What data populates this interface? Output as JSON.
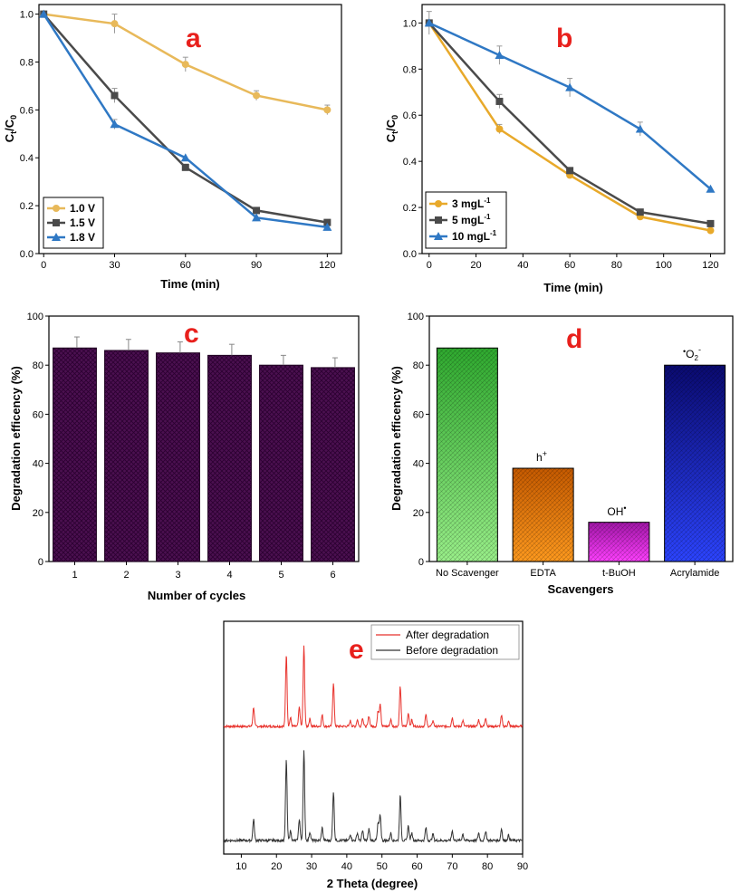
{
  "chart_data": [
    {
      "panel": "a",
      "type": "line",
      "xlabel": "Time (min)",
      "ylabel": "Ct/C0",
      "xlim": [
        -2,
        126
      ],
      "ylim": [
        0,
        1.04
      ],
      "xticks": [
        0,
        30,
        60,
        90,
        120
      ],
      "yticks": [
        0.0,
        0.2,
        0.4,
        0.6,
        0.8,
        1.0
      ],
      "x": [
        0,
        30,
        60,
        90,
        120
      ],
      "series": [
        {
          "name": "1.0 V",
          "color": "#e8b95a",
          "marker": "circle",
          "values": [
            1.0,
            0.96,
            0.79,
            0.66,
            0.6
          ],
          "err": [
            0,
            0.04,
            0.03,
            0.02,
            0.02
          ]
        },
        {
          "name": "1.5 V",
          "color": "#4a4a4a",
          "marker": "square",
          "values": [
            1.0,
            0.66,
            0.36,
            0.18,
            0.13
          ],
          "err": [
            0,
            0.03,
            0,
            0,
            0
          ]
        },
        {
          "name": "1.8 V",
          "color": "#2f78c4",
          "marker": "triangle",
          "values": [
            1.0,
            0.54,
            0.4,
            0.15,
            0.11
          ],
          "err": [
            0,
            0.02,
            0,
            0,
            0
          ]
        }
      ]
    },
    {
      "panel": "b",
      "type": "line",
      "xlabel": "Time (min)",
      "ylabel": "Ct/C0",
      "xlim": [
        -3,
        126
      ],
      "ylim": [
        0,
        1.08
      ],
      "xticks": [
        0,
        20,
        40,
        60,
        80,
        100,
        120
      ],
      "yticks": [
        0.0,
        0.2,
        0.4,
        0.6,
        0.8,
        1.0
      ],
      "x": [
        0,
        30,
        60,
        90,
        120
      ],
      "series": [
        {
          "name": "3 mgL-1",
          "color": "#e8a92a",
          "marker": "circle",
          "values": [
            1.0,
            0.54,
            0.34,
            0.16,
            0.1
          ],
          "err": [
            0,
            0.02,
            0,
            0,
            0
          ]
        },
        {
          "name": "5 mgL-1",
          "color": "#4a4a4a",
          "marker": "square",
          "values": [
            1.0,
            0.66,
            0.36,
            0.18,
            0.13
          ],
          "err": [
            0,
            0.03,
            0,
            0,
            0
          ]
        },
        {
          "name": "10 mgL-1",
          "color": "#2f78c4",
          "marker": "triangle",
          "values": [
            1.0,
            0.86,
            0.72,
            0.54,
            0.28
          ],
          "err": [
            0.05,
            0.04,
            0.04,
            0.03,
            0
          ]
        }
      ]
    },
    {
      "panel": "c",
      "type": "bar",
      "xlabel": "Number of cycles",
      "ylabel": "Degradation efficency (%)",
      "ylim": [
        0,
        100
      ],
      "yticks": [
        0,
        20,
        40,
        60,
        80,
        100
      ],
      "categories": [
        "1",
        "2",
        "3",
        "4",
        "5",
        "6"
      ],
      "values": [
        87,
        86,
        85,
        84,
        80,
        79
      ],
      "err": [
        4.5,
        4.5,
        4.5,
        4.5,
        4,
        4
      ],
      "color": "#4b1050"
    },
    {
      "panel": "d",
      "type": "bar",
      "xlabel": "Scavengers",
      "ylabel": "Degradation efficency (%)",
      "ylim": [
        0,
        100
      ],
      "yticks": [
        0,
        20,
        40,
        60,
        80,
        100
      ],
      "categories": [
        "No Scavenger",
        "EDTA",
        "t-BuOH",
        "Acrylamide"
      ],
      "values": [
        87,
        38,
        16,
        80
      ],
      "annotations": [
        "",
        "h",
        "OH",
        "O"
      ],
      "colors": [
        [
          "#2faa2f",
          "#9af08a"
        ],
        [
          "#c65a00",
          "#ff9a1e"
        ],
        [
          "#a216a8",
          "#ff40ff"
        ],
        [
          "#0a0a70",
          "#2c44ff"
        ]
      ]
    },
    {
      "panel": "e",
      "type": "line",
      "xlabel": "2 Theta (degree)",
      "xlim": [
        5,
        90
      ],
      "xticks": [
        10,
        20,
        30,
        40,
        50,
        60,
        70,
        80,
        90
      ],
      "peaks": [
        [
          13.5,
          1.0
        ],
        [
          22.8,
          3.8
        ],
        [
          24.0,
          0.45
        ],
        [
          26.5,
          1.0
        ],
        [
          27.8,
          4.2
        ],
        [
          29.5,
          0.4
        ],
        [
          33.0,
          0.6
        ],
        [
          36.2,
          2.3
        ],
        [
          41.0,
          0.3
        ],
        [
          43.0,
          0.35
        ],
        [
          44.5,
          0.45
        ],
        [
          46.3,
          0.55
        ],
        [
          48.9,
          0.8
        ],
        [
          49.5,
          1.2
        ],
        [
          52.5,
          0.35
        ],
        [
          55.2,
          2.1
        ],
        [
          57.5,
          0.7
        ],
        [
          58.5,
          0.35
        ],
        [
          62.5,
          0.6
        ],
        [
          64.5,
          0.3
        ],
        [
          70.0,
          0.45
        ],
        [
          73.0,
          0.3
        ],
        [
          77.5,
          0.35
        ],
        [
          79.5,
          0.45
        ],
        [
          84.0,
          0.55
        ],
        [
          86.0,
          0.25
        ]
      ],
      "series": [
        {
          "name": "After degradation",
          "color": "#e8322c"
        },
        {
          "name": "Before degradation",
          "color": "#333333"
        }
      ]
    }
  ],
  "labels": {
    "a": "a",
    "b": "b",
    "c": "c",
    "d": "d",
    "e": "e",
    "b_leg": [
      "3 mgL",
      "5 mgL",
      "10 mgL"
    ],
    "b_leg_sup": "-1",
    "d_ann_h": "h",
    "d_ann_h_sup": "+",
    "d_ann_oh": "OH",
    "d_ann_oh_sup": "•",
    "d_ann_o_pre": "•",
    "d_ann_o": "O",
    "d_ann_o_sub": "2",
    "d_ann_o_sup": "-"
  }
}
